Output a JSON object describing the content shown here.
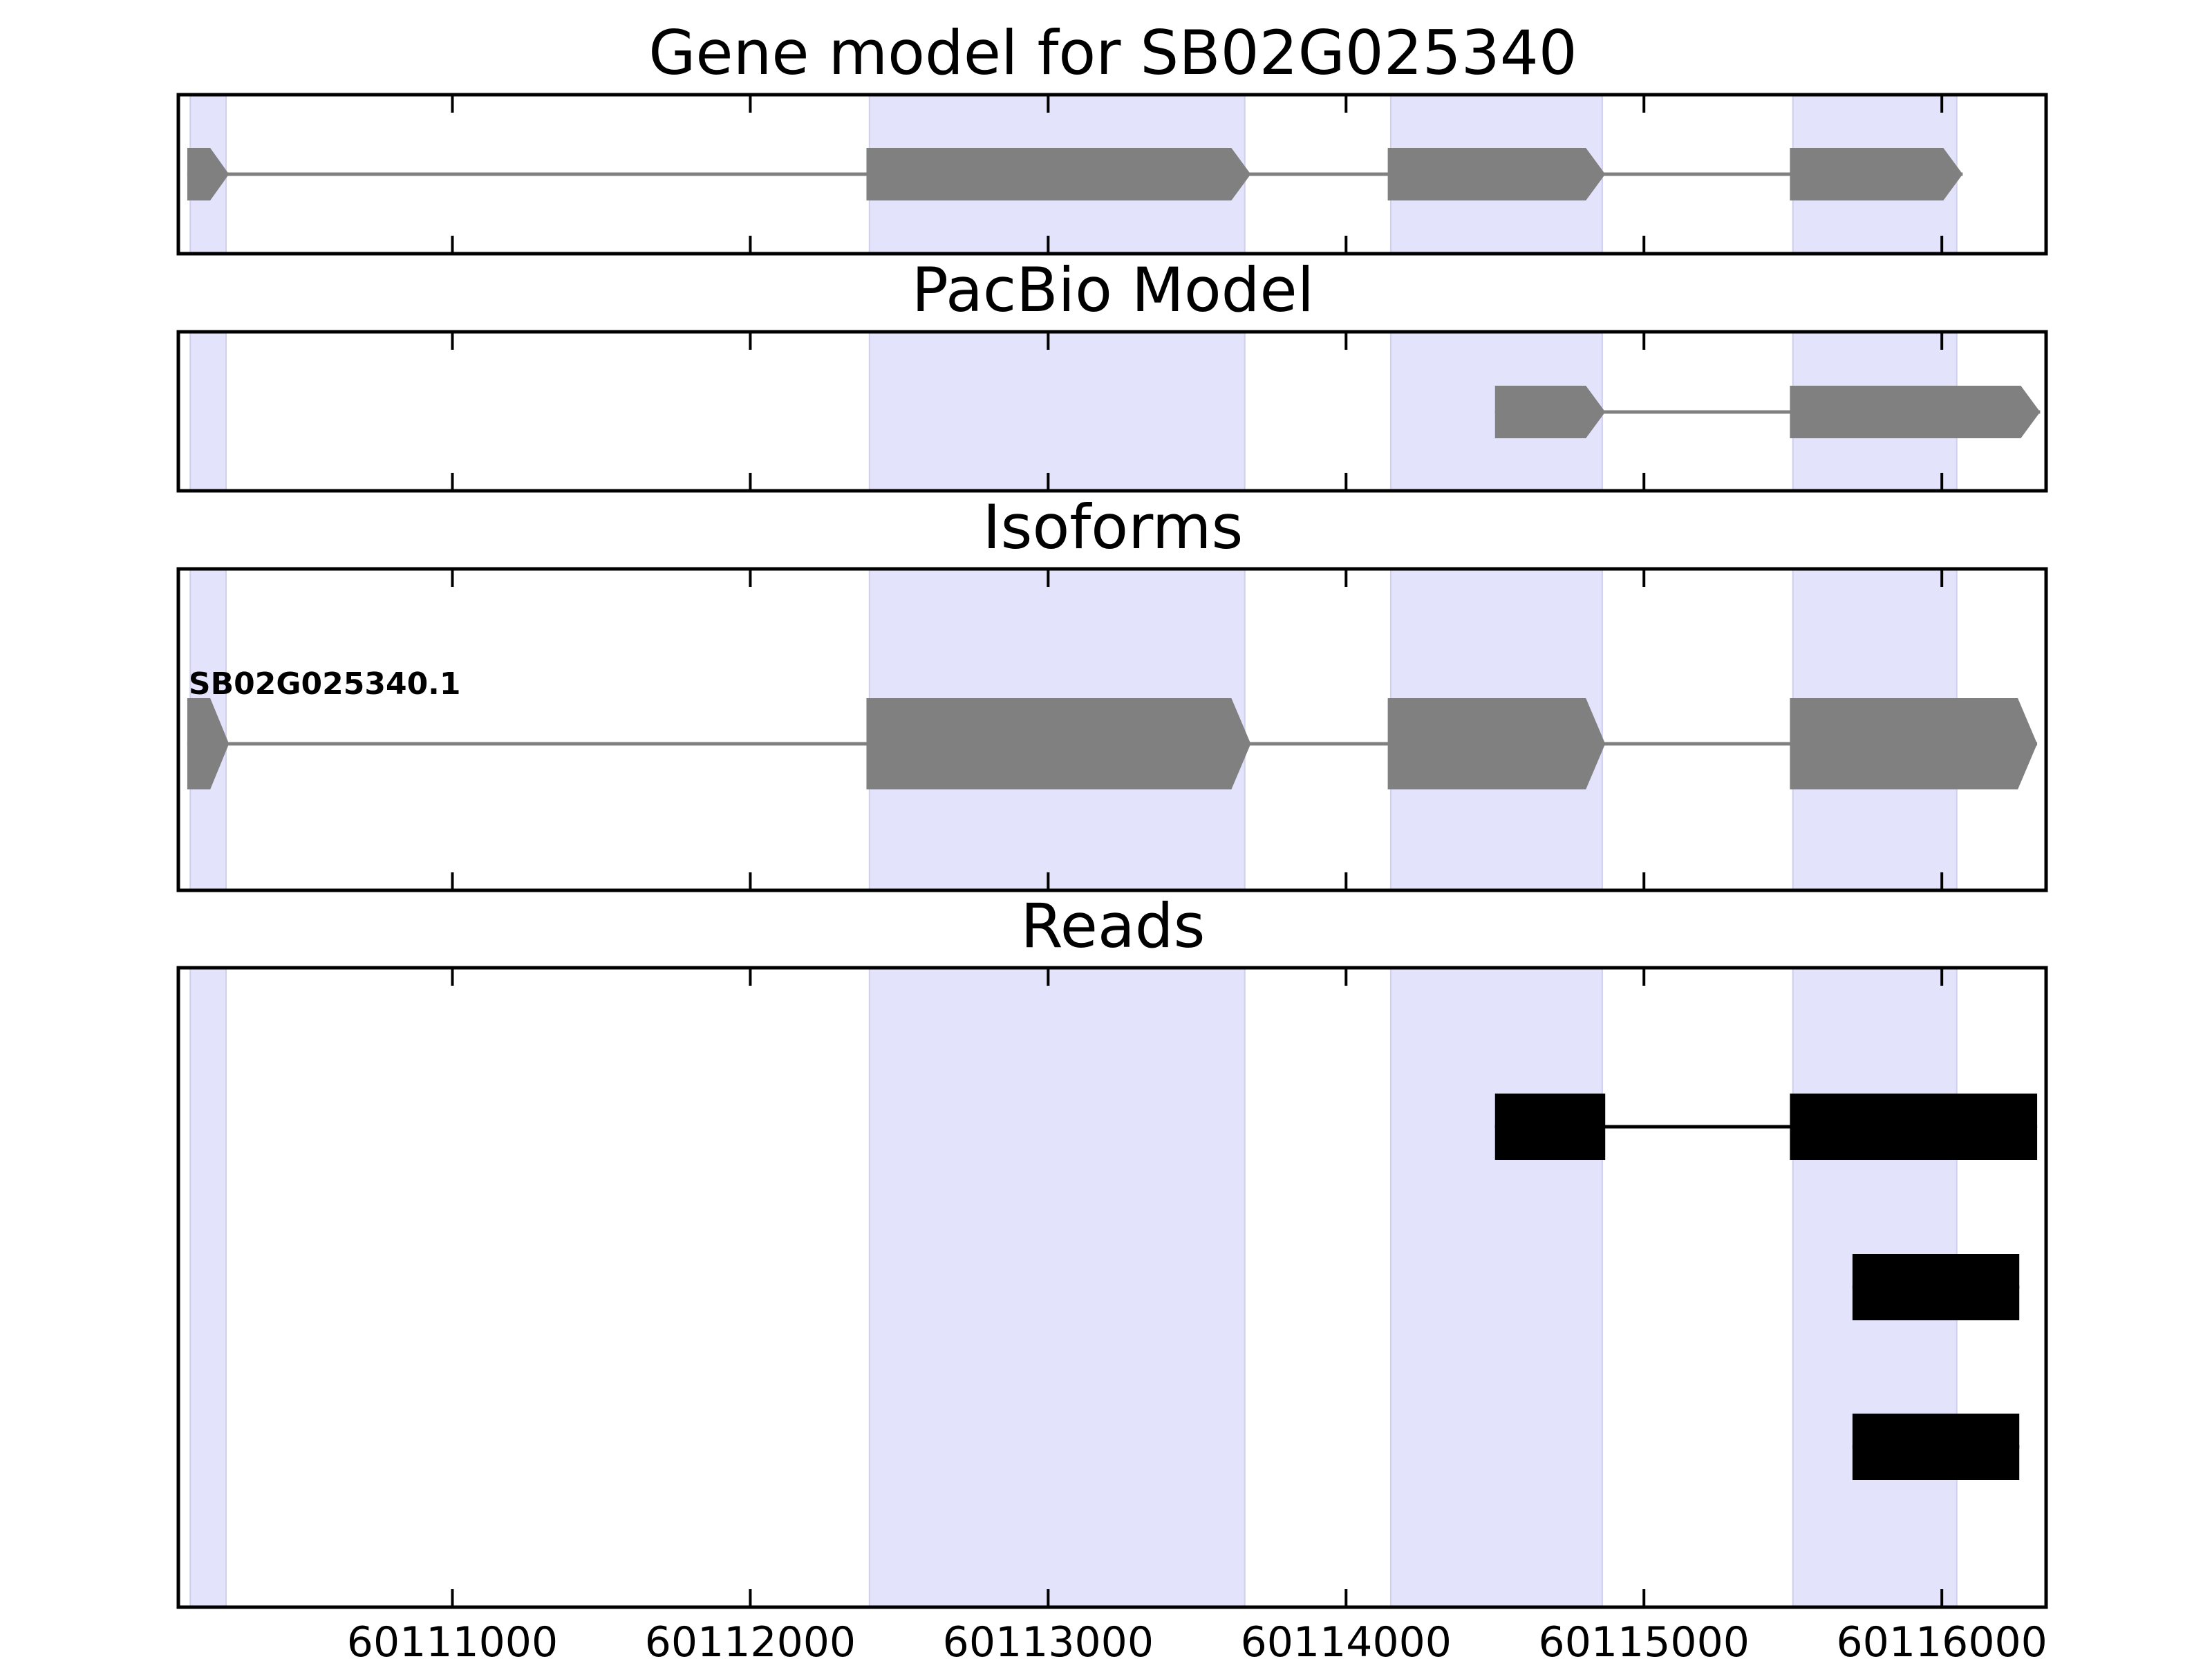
{
  "chart_data": {
    "type": "gene-track",
    "xlim": [
      60110080,
      60116350
    ],
    "x_ticks": [
      60111000,
      60112000,
      60113000,
      60114000,
      60115000,
      60116000
    ],
    "x_tick_labels": [
      "60111000",
      "60112000",
      "60113000",
      "60114000",
      "60115000",
      "60116000"
    ],
    "highlight_color": "#e3e3fc",
    "highlight_regions": [
      [
        60110120,
        60110240
      ],
      [
        60112400,
        60113660
      ],
      [
        60114150,
        60114860
      ],
      [
        60115500,
        60116050
      ]
    ],
    "panels": [
      {
        "title": "Gene model for SB02G025340",
        "feature_color": "#808080",
        "features": [
          {
            "label": "",
            "strand": "+",
            "start": 60110110,
            "end": 60116070,
            "exons": [
              [
                60110110,
                60110250
              ],
              [
                60112390,
                60113680
              ],
              [
                60114140,
                60114870
              ],
              [
                60115490,
                60116070
              ]
            ]
          }
        ]
      },
      {
        "title": "PacBio Model",
        "feature_color": "#808080",
        "features": [
          {
            "label": "",
            "strand": "+",
            "start": 60114500,
            "end": 60116330,
            "exons": [
              [
                60114500,
                60114870
              ],
              [
                60115490,
                60116330
              ]
            ]
          }
        ]
      },
      {
        "title": "Isoforms",
        "feature_color": "#808080",
        "features": [
          {
            "label": "SB02G025340.1",
            "strand": "+",
            "start": 60110110,
            "end": 60116320,
            "exons": [
              [
                60110110,
                60110250
              ],
              [
                60112390,
                60113680
              ],
              [
                60114140,
                60114870
              ],
              [
                60115490,
                60116320
              ]
            ]
          }
        ]
      },
      {
        "title": "Reads",
        "feature_color": "#000000",
        "features": [
          {
            "label": "",
            "strand": "",
            "start": 60114500,
            "end": 60116320,
            "exons": [
              [
                60114500,
                60114870
              ],
              [
                60115490,
                60116320
              ]
            ]
          },
          {
            "label": "",
            "strand": "",
            "start": 60115700,
            "end": 60116260,
            "exons": [
              [
                60115700,
                60116260
              ]
            ]
          },
          {
            "label": "",
            "strand": "",
            "start": 60115700,
            "end": 60116260,
            "exons": [
              [
                60115700,
                60116260
              ]
            ]
          }
        ]
      }
    ]
  }
}
